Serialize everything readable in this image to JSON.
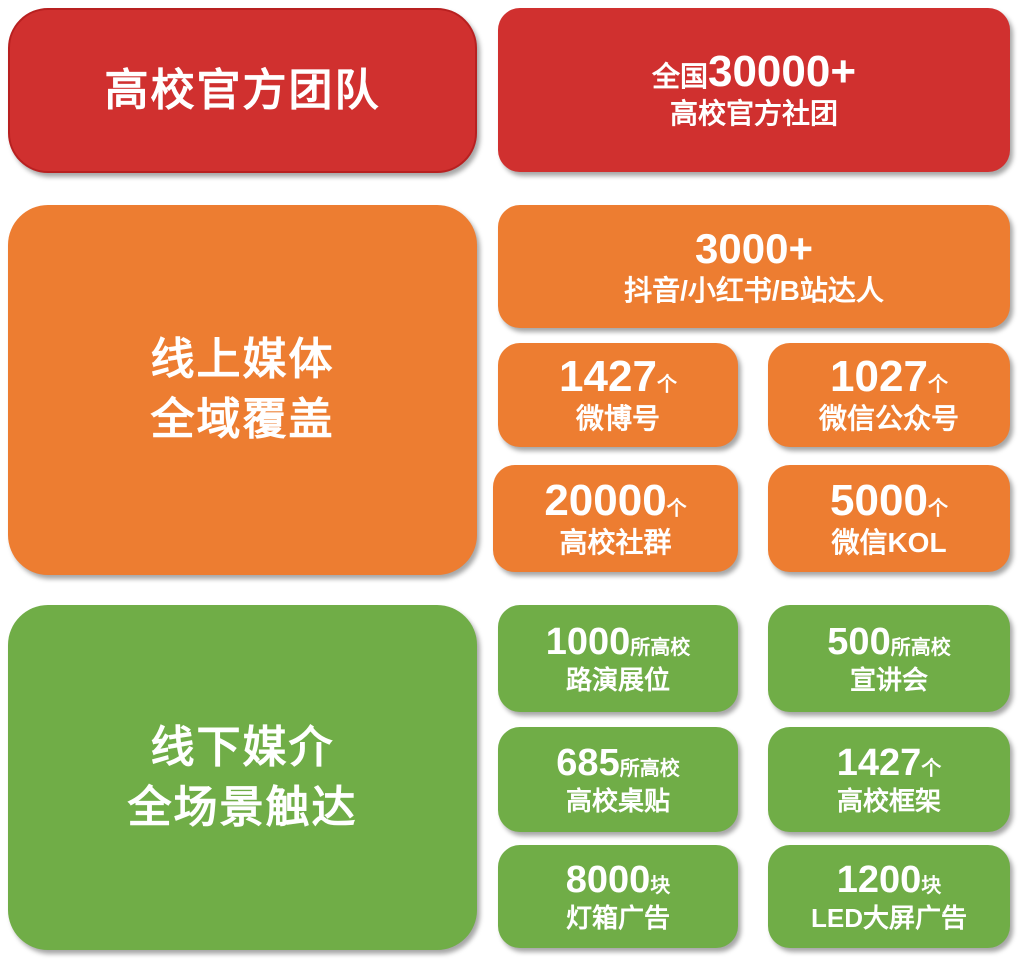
{
  "colors": {
    "red": "#d0302f",
    "orange": "#ed7d31",
    "green": "#70ad47"
  },
  "sections": [
    {
      "title_lines": [
        "高校官方团队"
      ],
      "cards": [
        {
          "prefix": "全国",
          "number": "30000+",
          "label": "高校官方社团"
        }
      ]
    },
    {
      "title_lines": [
        "线上媒体",
        "全域覆盖"
      ],
      "cards": [
        {
          "number": "3000+",
          "label": "抖音/小红书/B站达人"
        },
        {
          "number": "1427",
          "unit": "个",
          "label": "微博号"
        },
        {
          "number": "1027",
          "unit": "个",
          "label": "微信公众号"
        },
        {
          "number": "20000",
          "unit": "个",
          "label": "高校社群"
        },
        {
          "number": "5000",
          "unit": "个",
          "label": "微信KOL"
        }
      ]
    },
    {
      "title_lines": [
        "线下媒介",
        "全场景触达"
      ],
      "cards": [
        {
          "number": "1000",
          "unit": "所高校",
          "label": "路演展位"
        },
        {
          "number": "500",
          "unit": "所高校",
          "label": "宣讲会"
        },
        {
          "number": "685",
          "unit": "所高校",
          "label": "高校桌贴"
        },
        {
          "number": "1427",
          "unit": "个",
          "label": "高校框架"
        },
        {
          "number": "8000",
          "unit": "块",
          "label": "灯箱广告"
        },
        {
          "number": "1200",
          "unit": "块",
          "label": "LED大屏广告"
        }
      ]
    }
  ]
}
